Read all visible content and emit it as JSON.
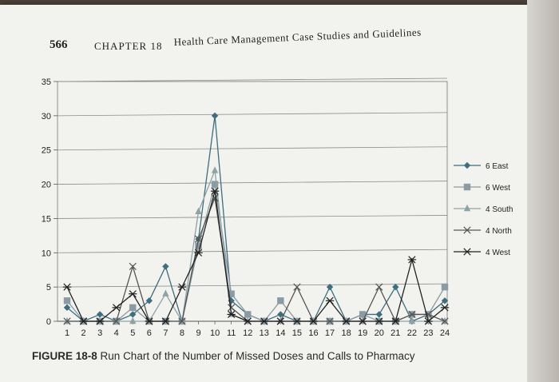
{
  "header": {
    "page_number": "566",
    "chapter": "CHAPTER 18",
    "book_title": "Health Care Management Case Studies and Guidelines"
  },
  "caption": {
    "figure_label": "FIGURE 18-8",
    "text": "Run Chart of the Number of Missed Doses and Calls to Pharmacy"
  },
  "chart_data": {
    "type": "line",
    "title": "Run Chart of the Number of Missed Doses and Calls to Pharmacy",
    "xlabel": "",
    "ylabel": "",
    "x": [
      1,
      2,
      3,
      4,
      5,
      6,
      7,
      8,
      9,
      10,
      11,
      12,
      13,
      14,
      15,
      16,
      17,
      18,
      19,
      20,
      21,
      22,
      23,
      24
    ],
    "x_tick_labels": [
      "1",
      "2",
      "3",
      "4",
      "5",
      "6",
      "7",
      "8",
      "9",
      "10",
      "11",
      "12",
      "13",
      "14",
      "15",
      "16",
      "17",
      "18",
      "19",
      "20",
      "21",
      "22",
      "23",
      "24"
    ],
    "ylim": [
      0,
      35
    ],
    "y_ticks": [
      0,
      5,
      10,
      15,
      20,
      25,
      30,
      35
    ],
    "grid": "horizontal",
    "legend_position": "right",
    "series": [
      {
        "name": "6 East",
        "marker": "diamond",
        "color": "#3f6e7e",
        "values": [
          2,
          0,
          1,
          0,
          1,
          3,
          8,
          0,
          12,
          30,
          3,
          1,
          0,
          1,
          0,
          0,
          5,
          0,
          1,
          1,
          5,
          0,
          1,
          3
        ]
      },
      {
        "name": "6 West",
        "marker": "square",
        "color": "#8a9ba4",
        "values": [
          3,
          0,
          0,
          0,
          2,
          0,
          0,
          0,
          11,
          20,
          4,
          1,
          0,
          3,
          0,
          0,
          0,
          0,
          1,
          0,
          0,
          1,
          1,
          5
        ]
      },
      {
        "name": "4 South",
        "marker": "triangle",
        "color": "#8fa3a7",
        "values": [
          0,
          0,
          0,
          0,
          0,
          0,
          4,
          0,
          16,
          22,
          1,
          0,
          0,
          0,
          0,
          0,
          0,
          0,
          0,
          0,
          0,
          0,
          0,
          0
        ]
      },
      {
        "name": "4 North",
        "marker": "x",
        "color": "#555555",
        "values": [
          0,
          0,
          0,
          0,
          8,
          0,
          0,
          0,
          12,
          18,
          2,
          0,
          0,
          0,
          5,
          0,
          0,
          0,
          0,
          5,
          0,
          1,
          1,
          0
        ]
      },
      {
        "name": "4 West",
        "marker": "asterisk",
        "color": "#222222",
        "values": [
          5,
          0,
          0,
          2,
          4,
          0,
          0,
          5,
          10,
          19,
          1,
          0,
          0,
          0,
          0,
          0,
          3,
          0,
          0,
          0,
          0,
          9,
          0,
          2
        ]
      }
    ]
  }
}
